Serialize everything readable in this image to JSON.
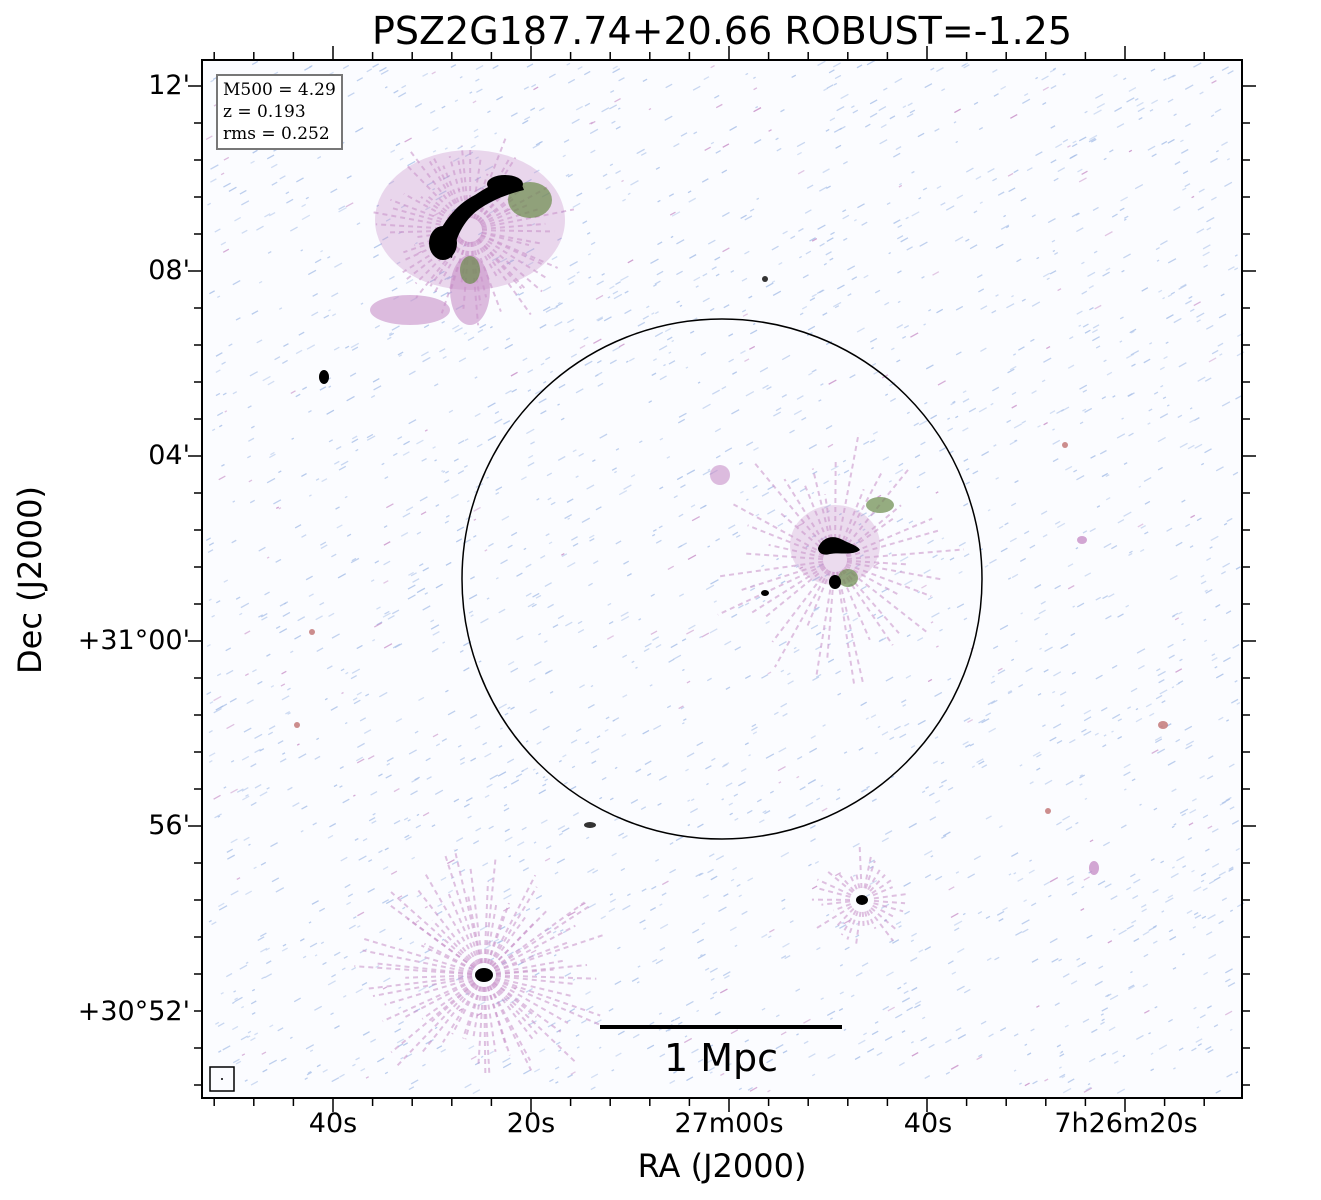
{
  "title": "PSZ2G187.74+20.66 ROBUST=-1.25",
  "axes": {
    "xlabel": "RA (J2000)",
    "ylabel": "Dec (J2000)",
    "xticks": [
      "40s",
      "20s",
      "27m00s",
      "40s",
      "7h26m20s"
    ],
    "yticks": [
      "12'",
      "08'",
      "04'",
      "+31°00'",
      "56'",
      "+30°52'"
    ]
  },
  "info": {
    "m500": "M500 = 4.29",
    "z": "z = 0.193",
    "rms": "rms = 0.252"
  },
  "scalebar": {
    "label": "1 Mpc"
  },
  "colors": {
    "noise": "#a9c0e8",
    "faint": "#c890c8",
    "mid": "#6a8a4a",
    "bright": "#000000",
    "frame": "#000000"
  }
}
